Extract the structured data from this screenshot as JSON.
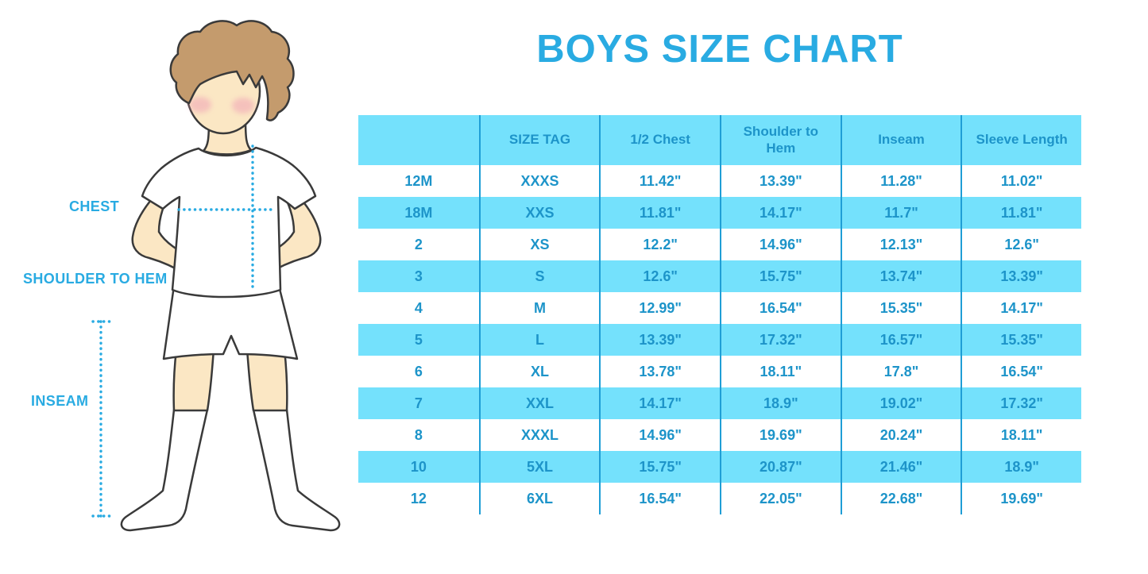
{
  "title": "BOYS SIZE CHART",
  "figure_labels": {
    "chest": "CHEST",
    "shoulder_to_hem": "SHOULDER TO HEM",
    "inseam": "INSEAM"
  },
  "colors": {
    "accent_blue": "#29ABE2",
    "table_text_blue": "#1D94C9",
    "row_cyan": "#74E1FC",
    "divider_blue": "#1F9ED6",
    "skin": "#FBE7C4",
    "hair_brown": "#C49B6D",
    "cheek_pink": "#F0A3B6"
  },
  "chart_data": {
    "type": "table",
    "title": "BOYS SIZE CHART",
    "columns": [
      "",
      "SIZE TAG",
      "1/2 Chest",
      "Shoulder to\nHem",
      "Inseam",
      "Sleeve Length"
    ],
    "rows": [
      [
        "12M",
        "XXXS",
        "11.42\"",
        "13.39\"",
        "11.28\"",
        "11.02\""
      ],
      [
        "18M",
        "XXS",
        "11.81\"",
        "14.17\"",
        "11.7\"",
        "11.81\""
      ],
      [
        "2",
        "XS",
        "12.2\"",
        "14.96\"",
        "12.13\"",
        "12.6\""
      ],
      [
        "3",
        "S",
        "12.6\"",
        "15.75\"",
        "13.74\"",
        "13.39\""
      ],
      [
        "4",
        "M",
        "12.99\"",
        "16.54\"",
        "15.35\"",
        "14.17\""
      ],
      [
        "5",
        "L",
        "13.39\"",
        "17.32\"",
        "16.57\"",
        "15.35\""
      ],
      [
        "6",
        "XL",
        "13.78\"",
        "18.11\"",
        "17.8\"",
        "16.54\""
      ],
      [
        "7",
        "XXL",
        "14.17\"",
        "18.9\"",
        "19.02\"",
        "17.32\""
      ],
      [
        "8",
        "XXXL",
        "14.96\"",
        "19.69\"",
        "20.24\"",
        "18.11\""
      ],
      [
        "10",
        "5XL",
        "15.75\"",
        "20.87\"",
        "21.46\"",
        "18.9\""
      ],
      [
        "12",
        "6XL",
        "16.54\"",
        "22.05\"",
        "22.68\"",
        "19.69\""
      ]
    ]
  }
}
